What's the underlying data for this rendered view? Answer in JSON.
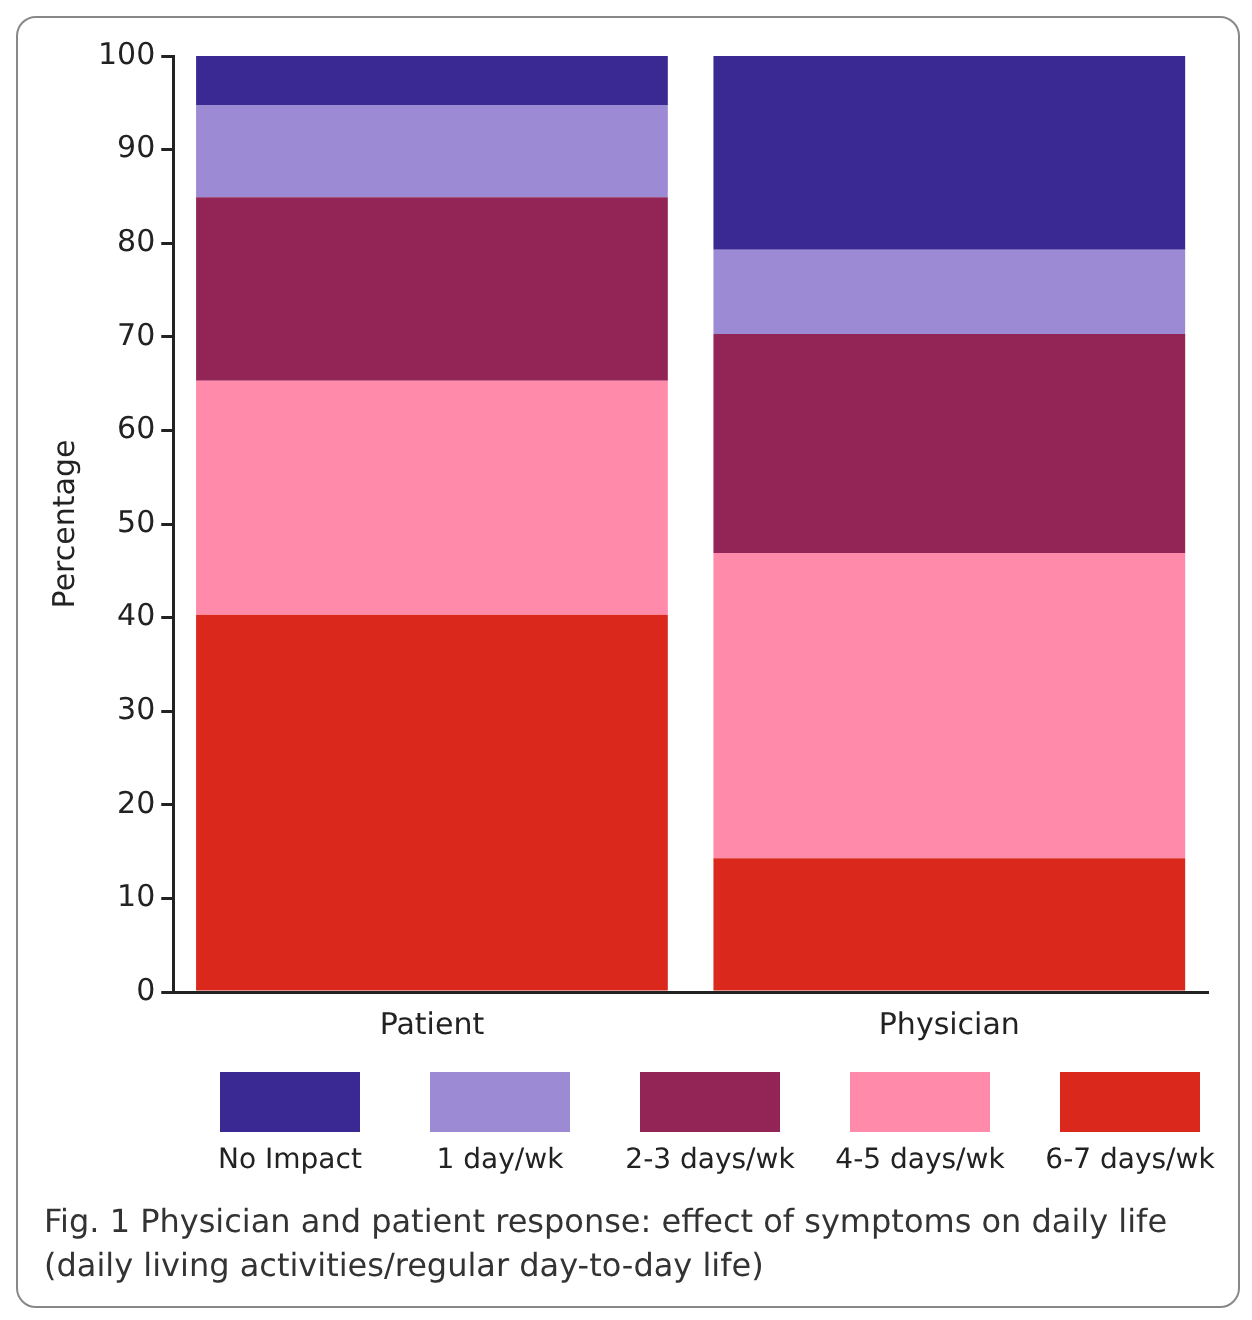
{
  "chart_data": {
    "type": "bar",
    "stacked": true,
    "ylabel": "Percentage",
    "categories": [
      "Patient",
      "Physician"
    ],
    "series": [
      {
        "name": "6-7 days/wk",
        "color": "#da291c",
        "values": [
          40.3,
          14.3
        ]
      },
      {
        "name": "4-5 days/wk",
        "color": "#ff8aaa",
        "values": [
          25.0,
          32.6
        ]
      },
      {
        "name": "2-3 days/wk",
        "color": "#932556",
        "values": [
          19.6,
          23.4
        ]
      },
      {
        "name": "1 day/wk",
        "color": "#9c8ad4",
        "values": [
          9.8,
          9.0
        ]
      },
      {
        "name": "No Impact",
        "color": "#3a2893",
        "values": [
          5.3,
          20.7
        ]
      }
    ],
    "ylim": [
      0,
      100
    ],
    "yticks": [
      0,
      10,
      20,
      30,
      40,
      50,
      60,
      70,
      80,
      90,
      100
    ],
    "grid": false,
    "legend": "bottom",
    "annotations": [
      "Fig. 1  Physician and patient response: effect of symptoms on daily life (daily living activities/regular day-to-day life)"
    ]
  }
}
